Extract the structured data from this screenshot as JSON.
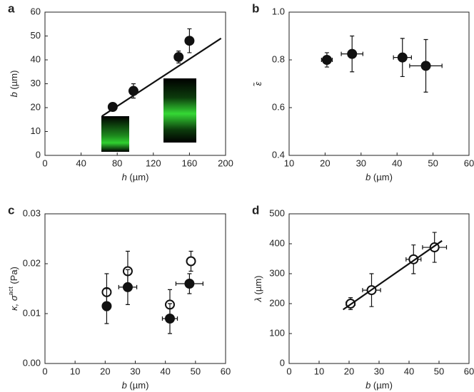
{
  "chart_data": [
    {
      "type": "scatter",
      "panel": "a",
      "xlabel_var": "h",
      "xlabel_unit": " (µm)",
      "ylabel_var": "b",
      "ylabel_unit": " (µm)",
      "xlim": [
        0,
        200
      ],
      "xticks": [
        0,
        40,
        80,
        120,
        160,
        200
      ],
      "ylim": [
        0,
        60
      ],
      "yticks": [
        0,
        10,
        20,
        30,
        40,
        50,
        60
      ],
      "series": [
        {
          "kind": "points",
          "filled": true,
          "x": [
            75,
            98,
            148,
            160
          ],
          "values": [
            20.3,
            27,
            41.2,
            48
          ],
          "yerr": [
            1,
            3,
            2.5,
            5
          ]
        },
        {
          "kind": "line",
          "x": [
            63,
            195
          ],
          "values": [
            16.4,
            49
          ]
        }
      ]
    },
    {
      "type": "scatter",
      "panel": "b",
      "xlabel_var": "b",
      "xlabel_unit": " (µm)",
      "ylabel_var": "ε̃",
      "xlim": [
        10,
        60
      ],
      "xticks": [
        10,
        20,
        30,
        40,
        50,
        60
      ],
      "ylim": [
        0.4,
        1
      ],
      "yticks": [
        0.4,
        0.6,
        0.8,
        {
          "value": 1,
          "label": "1.0"
        }
      ],
      "series": [
        {
          "kind": "points",
          "filled": true,
          "x": [
            20.5,
            27.5,
            41.5,
            48
          ],
          "values": [
            0.8,
            0.825,
            0.81,
            0.775
          ],
          "yerr": [
            0.03,
            0.075,
            0.08,
            0.11
          ],
          "xerr": [
            1.5,
            3,
            2.5,
            4.5
          ]
        }
      ]
    },
    {
      "type": "scatter",
      "panel": "c",
      "xlabel_var": "b",
      "xlabel_unit": " (µm)",
      "ylabel_var": "κ, σ",
      "ylabel_sup": "act",
      "ylabel_unit": " (Pa)",
      "xlim": [
        0,
        60
      ],
      "xticks": [
        0,
        10,
        20,
        30,
        40,
        50,
        60
      ],
      "ylim": [
        0,
        0.03
      ],
      "yticks": [
        {
          "value": 0,
          "label": "0.00"
        },
        {
          "value": 0.01,
          "label": "0.01"
        },
        {
          "value": 0.02,
          "label": "0.02"
        },
        {
          "value": 0.03,
          "label": "0.03"
        }
      ],
      "series": [
        {
          "kind": "points",
          "filled": false,
          "x": [
            20.5,
            27.5,
            41.5,
            48.5
          ],
          "values": [
            0.0143,
            0.0185,
            0.0118,
            0.0205
          ],
          "yerr": [
            0.0037,
            0.004,
            0.003,
            0.002
          ]
        },
        {
          "kind": "points",
          "filled": true,
          "x": [
            20.5,
            27.5,
            41.5,
            48
          ],
          "values": [
            0.0115,
            0.0153,
            0.009,
            0.016
          ],
          "yerr": [
            0.0035,
            0.0035,
            0.003,
            0.002
          ],
          "xerr": [
            1,
            3,
            2.5,
            4.5
          ]
        }
      ]
    },
    {
      "type": "scatter",
      "panel": "d",
      "xlabel_var": "b",
      "xlabel_unit": " (µm)",
      "ylabel_var": "λ",
      "ylabel_unit": " (µm)",
      "xlim": [
        0,
        60
      ],
      "xticks": [
        0,
        10,
        20,
        30,
        40,
        50,
        60
      ],
      "ylim": [
        0,
        500
      ],
      "yticks": [
        0,
        100,
        200,
        300,
        400,
        500
      ],
      "series": [
        {
          "kind": "points",
          "filled": false,
          "x": [
            20.5,
            27.5,
            41.5,
            48.5
          ],
          "values": [
            200,
            245,
            348,
            388
          ],
          "yerr": [
            20,
            55,
            48,
            50
          ],
          "xerr": [
            1.5,
            3,
            2.5,
            4
          ]
        },
        {
          "kind": "line",
          "x": [
            18,
            51
          ],
          "values": [
            180,
            410
          ]
        }
      ]
    }
  ]
}
